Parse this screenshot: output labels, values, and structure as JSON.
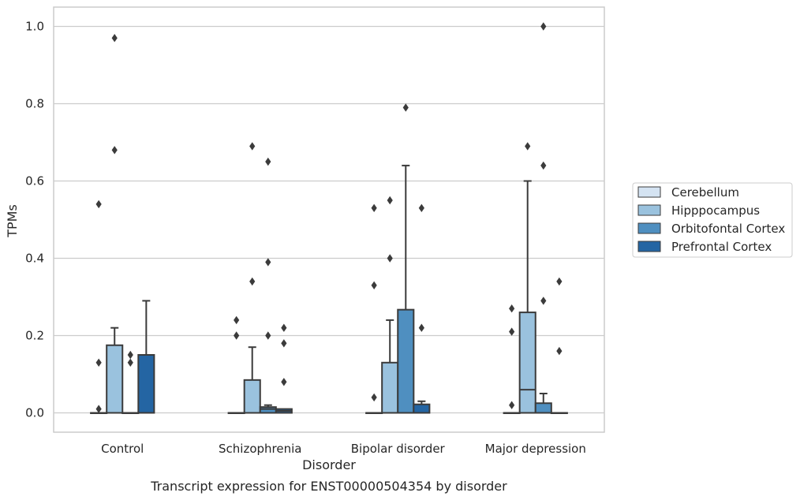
{
  "chart_data": {
    "type": "box",
    "title": "",
    "caption": "Transcript expression for ENST00000504354 by disorder",
    "xlabel": "Disorder",
    "ylabel": "TPMs",
    "ylim": [
      -0.05,
      1.05
    ],
    "yticks": [
      "0.0",
      "0.2",
      "0.4",
      "0.6",
      "0.8",
      "1.0"
    ],
    "categories": [
      "Control",
      "Schizophrenia",
      "Bipolar disorder",
      "Major depression"
    ],
    "grid": "horizontal",
    "legend_position": "right",
    "series": [
      {
        "name": "Cerebellum",
        "color": "#d4e3f2",
        "boxes": [
          {
            "q1": 0,
            "median": 0,
            "q3": 0,
            "whisker_low": 0,
            "whisker_high": 0,
            "outliers": [
              0.54,
              0.13,
              0.01
            ]
          },
          {
            "q1": 0,
            "median": 0,
            "q3": 0,
            "whisker_low": 0,
            "whisker_high": 0,
            "outliers": [
              0.24,
              0.2
            ]
          },
          {
            "q1": 0,
            "median": 0,
            "q3": 0,
            "whisker_low": 0,
            "whisker_high": 0,
            "outliers": [
              0.53,
              0.33,
              0.04
            ]
          },
          {
            "q1": 0,
            "median": 0,
            "q3": 0,
            "whisker_low": 0,
            "whisker_high": 0,
            "outliers": [
              0.27,
              0.21,
              0.02
            ]
          }
        ]
      },
      {
        "name": "Hipppocampus",
        "color": "#9ac2de",
        "boxes": [
          {
            "q1": 0,
            "median": 0,
            "q3": 0.175,
            "whisker_low": 0,
            "whisker_high": 0.22,
            "outliers": [
              0.97,
              0.68
            ]
          },
          {
            "q1": 0,
            "median": 0,
            "q3": 0.085,
            "whisker_low": 0,
            "whisker_high": 0.17,
            "outliers": [
              0.69,
              0.34
            ]
          },
          {
            "q1": 0,
            "median": 0,
            "q3": 0.13,
            "whisker_low": 0,
            "whisker_high": 0.24,
            "outliers": [
              0.55,
              0.4
            ]
          },
          {
            "q1": 0,
            "median": 0.06,
            "q3": 0.26,
            "whisker_low": 0,
            "whisker_high": 0.6,
            "outliers": [
              0.69
            ]
          }
        ]
      },
      {
        "name": "Orbitofontal Cortex",
        "color": "#4f8fc0",
        "boxes": [
          {
            "q1": 0,
            "median": 0,
            "q3": 0,
            "whisker_low": 0,
            "whisker_high": 0,
            "outliers": [
              0.15,
              0.13
            ]
          },
          {
            "q1": 0,
            "median": 0.01,
            "q3": 0.015,
            "whisker_low": 0,
            "whisker_high": 0.02,
            "outliers": [
              0.65,
              0.39,
              0.2
            ]
          },
          {
            "q1": 0,
            "median": 0,
            "q3": 0.267,
            "whisker_low": 0,
            "whisker_high": 0.64,
            "outliers": [
              0.79
            ]
          },
          {
            "q1": 0,
            "median": 0,
            "q3": 0.025,
            "whisker_low": 0,
            "whisker_high": 0.05,
            "outliers": [
              1.0,
              0.64,
              0.29
            ]
          }
        ]
      },
      {
        "name": "Prefrontal Cortex",
        "color": "#2465a3",
        "boxes": [
          {
            "q1": 0,
            "median": 0,
            "q3": 0.15,
            "whisker_low": 0,
            "whisker_high": 0.29,
            "outliers": []
          },
          {
            "q1": 0,
            "median": 0.005,
            "q3": 0.01,
            "whisker_low": 0,
            "whisker_high": 0.01,
            "outliers": [
              0.22,
              0.18,
              0.08
            ]
          },
          {
            "q1": 0,
            "median": 0,
            "q3": 0.022,
            "whisker_low": 0,
            "whisker_high": 0.03,
            "outliers": [
              0.53,
              0.22
            ]
          },
          {
            "q1": 0,
            "median": 0,
            "q3": 0,
            "whisker_low": 0,
            "whisker_high": 0,
            "outliers": [
              0.34,
              0.16
            ]
          }
        ]
      }
    ]
  }
}
